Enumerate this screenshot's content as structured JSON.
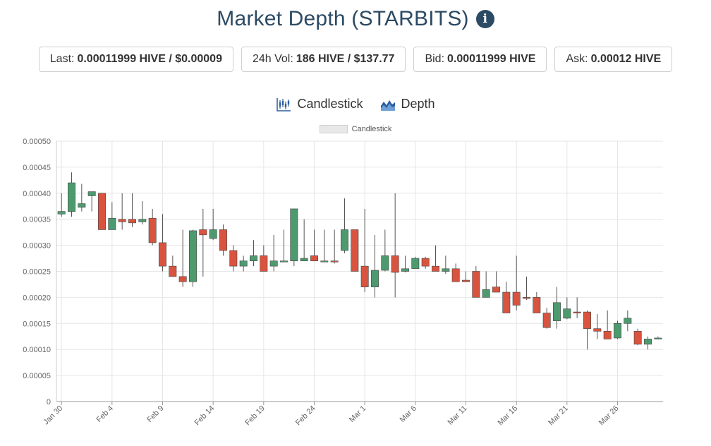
{
  "header": {
    "title": "Market Depth (STARBITS)",
    "info_icon": "info-circle-icon"
  },
  "stats": [
    {
      "label": "Last:",
      "value": "0.00011999 HIVE / $0.00009"
    },
    {
      "label": "24h Vol:",
      "value": "186 HIVE / $137.77"
    },
    {
      "label": "Bid:",
      "value": "0.00011999 HIVE"
    },
    {
      "label": "Ask:",
      "value": "0.00012 HIVE"
    }
  ],
  "tabs": [
    {
      "label": "Candlestick",
      "icon": "candlestick-icon"
    },
    {
      "label": "Depth",
      "icon": "depth-icon"
    }
  ],
  "colors": {
    "up": "#4e9a6f",
    "down": "#d9543f",
    "title": "#2c4a63",
    "grid": "#e6e6e6"
  },
  "chart_data": {
    "type": "candlestick",
    "legend": "Candlestick",
    "legend_position": "top-center",
    "grid": true,
    "ylim": [
      0,
      0.0005
    ],
    "yticks": [
      "0",
      "0.00005",
      "0.00010",
      "0.00015",
      "0.00020",
      "0.00025",
      "0.00030",
      "0.00035",
      "0.00040",
      "0.00045",
      "0.00050"
    ],
    "xticks": [
      "Jan 30",
      "Feb 4",
      "Feb 9",
      "Feb 14",
      "Feb 19",
      "Feb 24",
      "Mar 1",
      "Mar 6",
      "Mar 11",
      "Mar 16",
      "Mar 21",
      "Mar 26"
    ],
    "candles": [
      {
        "date": "Jan 30",
        "o": 0.00036,
        "h": 0.0004,
        "l": 0.000355,
        "c": 0.000365
      },
      {
        "date": "Jan 31",
        "o": 0.000365,
        "h": 0.00044,
        "l": 0.000355,
        "c": 0.00042
      },
      {
        "date": "Feb 1",
        "o": 0.000373,
        "h": 0.000418,
        "l": 0.000365,
        "c": 0.00038
      },
      {
        "date": "Feb 2",
        "o": 0.000395,
        "h": 0.0004,
        "l": 0.000365,
        "c": 0.000403
      },
      {
        "date": "Feb 3",
        "o": 0.0004,
        "h": 0.0004,
        "l": 0.00033,
        "c": 0.00033
      },
      {
        "date": "Feb 4",
        "o": 0.00033,
        "h": 0.000383,
        "l": 0.00033,
        "c": 0.000352
      },
      {
        "date": "Feb 5",
        "o": 0.00035,
        "h": 0.0004,
        "l": 0.00033,
        "c": 0.000345
      },
      {
        "date": "Feb 6",
        "o": 0.00035,
        "h": 0.0004,
        "l": 0.000335,
        "c": 0.000343
      },
      {
        "date": "Feb 7",
        "o": 0.000345,
        "h": 0.000385,
        "l": 0.00034,
        "c": 0.00035
      },
      {
        "date": "Feb 8",
        "o": 0.000352,
        "h": 0.00037,
        "l": 0.0003,
        "c": 0.000305
      },
      {
        "date": "Feb 9",
        "o": 0.000305,
        "h": 0.00036,
        "l": 0.00025,
        "c": 0.00026
      },
      {
        "date": "Feb 10",
        "o": 0.00026,
        "h": 0.00028,
        "l": 0.00024,
        "c": 0.00024
      },
      {
        "date": "Feb 11",
        "o": 0.00024,
        "h": 0.00033,
        "l": 0.00022,
        "c": 0.00023
      },
      {
        "date": "Feb 12",
        "o": 0.00023,
        "h": 0.00033,
        "l": 0.00022,
        "c": 0.000328
      },
      {
        "date": "Feb 13",
        "o": 0.00033,
        "h": 0.00037,
        "l": 0.00024,
        "c": 0.00032
      },
      {
        "date": "Feb 14",
        "o": 0.000313,
        "h": 0.00037,
        "l": 0.00031,
        "c": 0.00033
      },
      {
        "date": "Feb 15",
        "o": 0.00033,
        "h": 0.00034,
        "l": 0.00028,
        "c": 0.00029
      },
      {
        "date": "Feb 16",
        "o": 0.00029,
        "h": 0.0003,
        "l": 0.00025,
        "c": 0.00026
      },
      {
        "date": "Feb 17",
        "o": 0.00026,
        "h": 0.00028,
        "l": 0.00025,
        "c": 0.00027
      },
      {
        "date": "Feb 18",
        "o": 0.00027,
        "h": 0.00031,
        "l": 0.00026,
        "c": 0.00028
      },
      {
        "date": "Feb 19",
        "o": 0.00028,
        "h": 0.0003,
        "l": 0.00025,
        "c": 0.00025
      },
      {
        "date": "Feb 20",
        "o": 0.00026,
        "h": 0.00032,
        "l": 0.00025,
        "c": 0.00027
      },
      {
        "date": "Feb 21",
        "o": 0.00027,
        "h": 0.00033,
        "l": 0.00027,
        "c": 0.00027
      },
      {
        "date": "Feb 22",
        "o": 0.00027,
        "h": 0.00037,
        "l": 0.00026,
        "c": 0.00037
      },
      {
        "date": "Feb 23",
        "o": 0.00027,
        "h": 0.00035,
        "l": 0.00027,
        "c": 0.000275
      },
      {
        "date": "Feb 24",
        "o": 0.00028,
        "h": 0.00033,
        "l": 0.00027,
        "c": 0.00027
      },
      {
        "date": "Feb 25",
        "o": 0.00027,
        "h": 0.00033,
        "l": 0.00027,
        "c": 0.00027
      },
      {
        "date": "Feb 26",
        "o": 0.00027,
        "h": 0.00033,
        "l": 0.000265,
        "c": 0.000268
      },
      {
        "date": "Feb 27",
        "o": 0.00029,
        "h": 0.00039,
        "l": 0.000285,
        "c": 0.00033
      },
      {
        "date": "Feb 28",
        "o": 0.00033,
        "h": 0.00033,
        "l": 0.00025,
        "c": 0.00025
      },
      {
        "date": "Mar 1",
        "o": 0.00026,
        "h": 0.00037,
        "l": 0.00021,
        "c": 0.00022
      },
      {
        "date": "Mar 2",
        "o": 0.00022,
        "h": 0.00032,
        "l": 0.0002,
        "c": 0.000252
      },
      {
        "date": "Mar 3",
        "o": 0.000252,
        "h": 0.00033,
        "l": 0.00025,
        "c": 0.00028
      },
      {
        "date": "Mar 4",
        "o": 0.00028,
        "h": 0.0004,
        "l": 0.0002,
        "c": 0.000248
      },
      {
        "date": "Mar 5",
        "o": 0.00025,
        "h": 0.00028,
        "l": 0.000248,
        "c": 0.000255
      },
      {
        "date": "Mar 6",
        "o": 0.000255,
        "h": 0.000278,
        "l": 0.000255,
        "c": 0.000275
      },
      {
        "date": "Mar 7",
        "o": 0.000275,
        "h": 0.000278,
        "l": 0.000255,
        "c": 0.00026
      },
      {
        "date": "Mar 8",
        "o": 0.00026,
        "h": 0.0003,
        "l": 0.00025,
        "c": 0.00025
      },
      {
        "date": "Mar 9",
        "o": 0.00025,
        "h": 0.00028,
        "l": 0.000245,
        "c": 0.000255
      },
      {
        "date": "Mar 10",
        "o": 0.000255,
        "h": 0.000265,
        "l": 0.00023,
        "c": 0.00023
      },
      {
        "date": "Mar 11",
        "o": 0.000233,
        "h": 0.00025,
        "l": 0.00023,
        "c": 0.00023
      },
      {
        "date": "Mar 12",
        "o": 0.00025,
        "h": 0.00026,
        "l": 0.0002,
        "c": 0.0002
      },
      {
        "date": "Mar 13",
        "o": 0.0002,
        "h": 0.00025,
        "l": 0.0002,
        "c": 0.000215
      },
      {
        "date": "Mar 14",
        "o": 0.00022,
        "h": 0.00025,
        "l": 0.00021,
        "c": 0.00021
      },
      {
        "date": "Mar 15",
        "o": 0.00021,
        "h": 0.00023,
        "l": 0.00017,
        "c": 0.00017
      },
      {
        "date": "Mar 16",
        "o": 0.00021,
        "h": 0.00028,
        "l": 0.000175,
        "c": 0.000185
      },
      {
        "date": "Mar 17",
        "o": 0.0002,
        "h": 0.00024,
        "l": 0.000195,
        "c": 0.000198
      },
      {
        "date": "Mar 18",
        "o": 0.0002,
        "h": 0.00021,
        "l": 0.00017,
        "c": 0.00017
      },
      {
        "date": "Mar 19",
        "o": 0.00017,
        "h": 0.00018,
        "l": 0.00014,
        "c": 0.000142
      },
      {
        "date": "Mar 20",
        "o": 0.000155,
        "h": 0.00022,
        "l": 0.00014,
        "c": 0.00019
      },
      {
        "date": "Mar 21",
        "o": 0.00016,
        "h": 0.0002,
        "l": 0.000158,
        "c": 0.000178
      },
      {
        "date": "Mar 22",
        "o": 0.000172,
        "h": 0.0002,
        "l": 0.00016,
        "c": 0.00017
      },
      {
        "date": "Mar 23",
        "o": 0.000172,
        "h": 0.000175,
        "l": 0.0001,
        "c": 0.00014
      },
      {
        "date": "Mar 24",
        "o": 0.00014,
        "h": 0.000168,
        "l": 0.00012,
        "c": 0.000135
      },
      {
        "date": "Mar 25",
        "o": 0.000135,
        "h": 0.000175,
        "l": 0.00012,
        "c": 0.00012
      },
      {
        "date": "Mar 26",
        "o": 0.000122,
        "h": 0.000155,
        "l": 0.00012,
        "c": 0.00015
      },
      {
        "date": "Mar 27",
        "o": 0.00015,
        "h": 0.000175,
        "l": 0.000135,
        "c": 0.00016
      },
      {
        "date": "Mar 28",
        "o": 0.000135,
        "h": 0.00014,
        "l": 0.000108,
        "c": 0.00011
      },
      {
        "date": "Mar 29",
        "o": 0.00011,
        "h": 0.000125,
        "l": 0.0001,
        "c": 0.00012
      },
      {
        "date": "Mar 30",
        "o": 0.00012,
        "h": 0.000125,
        "l": 0.00012,
        "c": 0.000122
      }
    ]
  }
}
